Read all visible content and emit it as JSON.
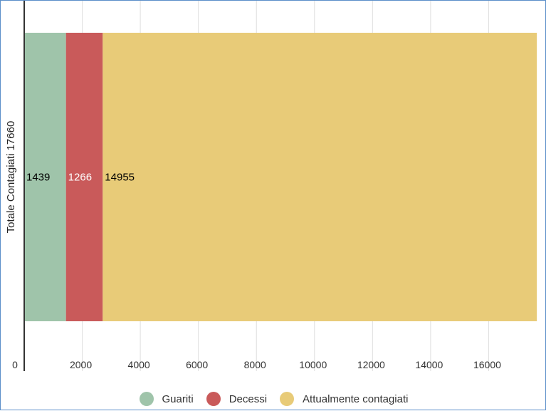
{
  "chart_data": {
    "type": "bar",
    "orientation": "horizontal",
    "stacked": true,
    "ylabel": "Totale Contagiati 17660",
    "xlim": [
      0,
      18000
    ],
    "x_ticks": [
      "0",
      "2000",
      "4000",
      "6000",
      "8000",
      "10000",
      "12000",
      "14000",
      "16000"
    ],
    "series": [
      {
        "name": "Guariti",
        "value": 1439,
        "label": "1439",
        "color": "#9fc4aa",
        "label_color": "#000000"
      },
      {
        "name": "Decessi",
        "value": 1266,
        "label": "1266",
        "color": "#c95a5a",
        "label_color": "#ffffff"
      },
      {
        "name": "Attualmente contagiati",
        "value": 14955,
        "label": "14955",
        "color": "#e8cb78",
        "label_color": "#000000"
      }
    ],
    "grid": true,
    "legend_position": "bottom"
  }
}
